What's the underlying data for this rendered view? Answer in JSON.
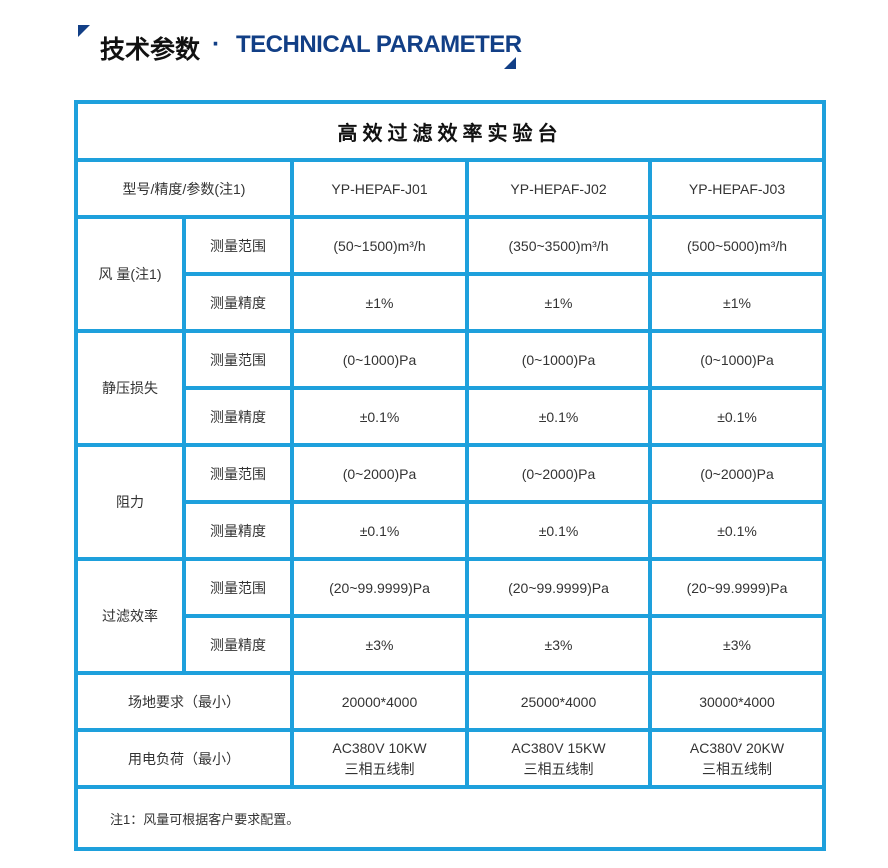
{
  "header": {
    "title_cn": "技术参数",
    "separator": "·",
    "title_en": "TECHNICAL PARAMETER",
    "accent_color": "#123f86"
  },
  "table": {
    "title": "高效过滤效率实验台",
    "border_color": "#1ea0dc",
    "model_label": "型号/精度/参数(注1)",
    "models": [
      "YP-HEPAF-J01",
      "YP-HEPAF-J02",
      "YP-HEPAF-J03"
    ],
    "groups": [
      {
        "name": "风 量(注1)",
        "rows": [
          {
            "label": "测量范围",
            "values": [
              "(50~1500)m³/h",
              "(350~3500)m³/h",
              "(500~5000)m³/h"
            ]
          },
          {
            "label": "测量精度",
            "values": [
              "±1%",
              "±1%",
              "±1%"
            ]
          }
        ]
      },
      {
        "name": "静压损失",
        "rows": [
          {
            "label": "测量范围",
            "values": [
              "(0~1000)Pa",
              "(0~1000)Pa",
              "(0~1000)Pa"
            ]
          },
          {
            "label": "测量精度",
            "values": [
              "±0.1%",
              "±0.1%",
              "±0.1%"
            ]
          }
        ]
      },
      {
        "name": "阻力",
        "rows": [
          {
            "label": "测量范围",
            "values": [
              "(0~2000)Pa",
              "(0~2000)Pa",
              "(0~2000)Pa"
            ]
          },
          {
            "label": "测量精度",
            "values": [
              "±0.1%",
              "±0.1%",
              "±0.1%"
            ]
          }
        ]
      },
      {
        "name": "过滤效率",
        "rows": [
          {
            "label": "测量范围",
            "values": [
              "(20~99.9999)Pa",
              "(20~99.9999)Pa",
              "(20~99.9999)Pa"
            ]
          },
          {
            "label": "测量精度",
            "values": [
              "±3%",
              "±3%",
              "±3%"
            ]
          }
        ]
      }
    ],
    "site": {
      "label": "场地要求（最小）",
      "values": [
        "20000*4000",
        "25000*4000",
        "30000*4000"
      ]
    },
    "power": {
      "label": "用电负荷（最小）",
      "values": [
        [
          "AC380V  10KW",
          "三相五线制"
        ],
        [
          "AC380V  15KW",
          "三相五线制"
        ],
        [
          "AC380V  20KW",
          "三相五线制"
        ]
      ]
    },
    "note": "注1：风量可根据客户要求配置。"
  }
}
